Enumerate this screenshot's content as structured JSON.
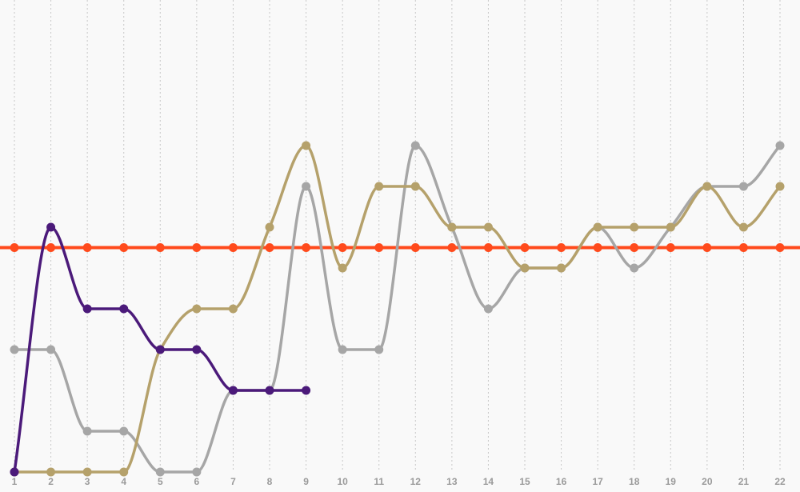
{
  "chart_data": {
    "type": "line",
    "categories": [
      "1",
      "2",
      "3",
      "4",
      "5",
      "6",
      "7",
      "8",
      "9",
      "10",
      "11",
      "12",
      "13",
      "14",
      "15",
      "16",
      "17",
      "18",
      "19",
      "20",
      "21",
      "22"
    ],
    "series": [
      {
        "color": "#ff4a1c",
        "values": [
          5.5,
          5.5,
          5.5,
          5.5,
          5.5,
          5.5,
          5.5,
          5.5,
          5.5,
          5.5,
          5.5,
          5.5,
          5.5,
          5.5,
          5.5,
          5.5,
          5.5,
          5.5,
          5.5,
          5.5,
          5.5,
          5.5
        ],
        "extend": true
      },
      {
        "color": "#a6a6a6",
        "values": [
          3,
          3,
          1,
          1,
          0,
          0,
          2,
          2,
          7,
          3,
          3,
          8,
          6,
          4,
          5,
          5,
          6,
          5,
          6,
          7,
          7,
          8
        ]
      },
      {
        "color": "#b5a16b",
        "values": [
          0,
          0,
          0,
          0,
          3,
          4,
          4,
          6,
          8,
          5,
          7,
          7,
          6,
          6,
          5,
          5,
          6,
          6,
          6,
          7,
          6,
          7
        ]
      },
      {
        "color": "#4b1a7a",
        "values": [
          0,
          6,
          4,
          4,
          3,
          3,
          2,
          2,
          2,
          null,
          null,
          null,
          null,
          null,
          null,
          null,
          null,
          null,
          null,
          null,
          null,
          null
        ]
      }
    ],
    "ylim": [
      0,
      11.5
    ],
    "grid": true,
    "smooth": true
  }
}
